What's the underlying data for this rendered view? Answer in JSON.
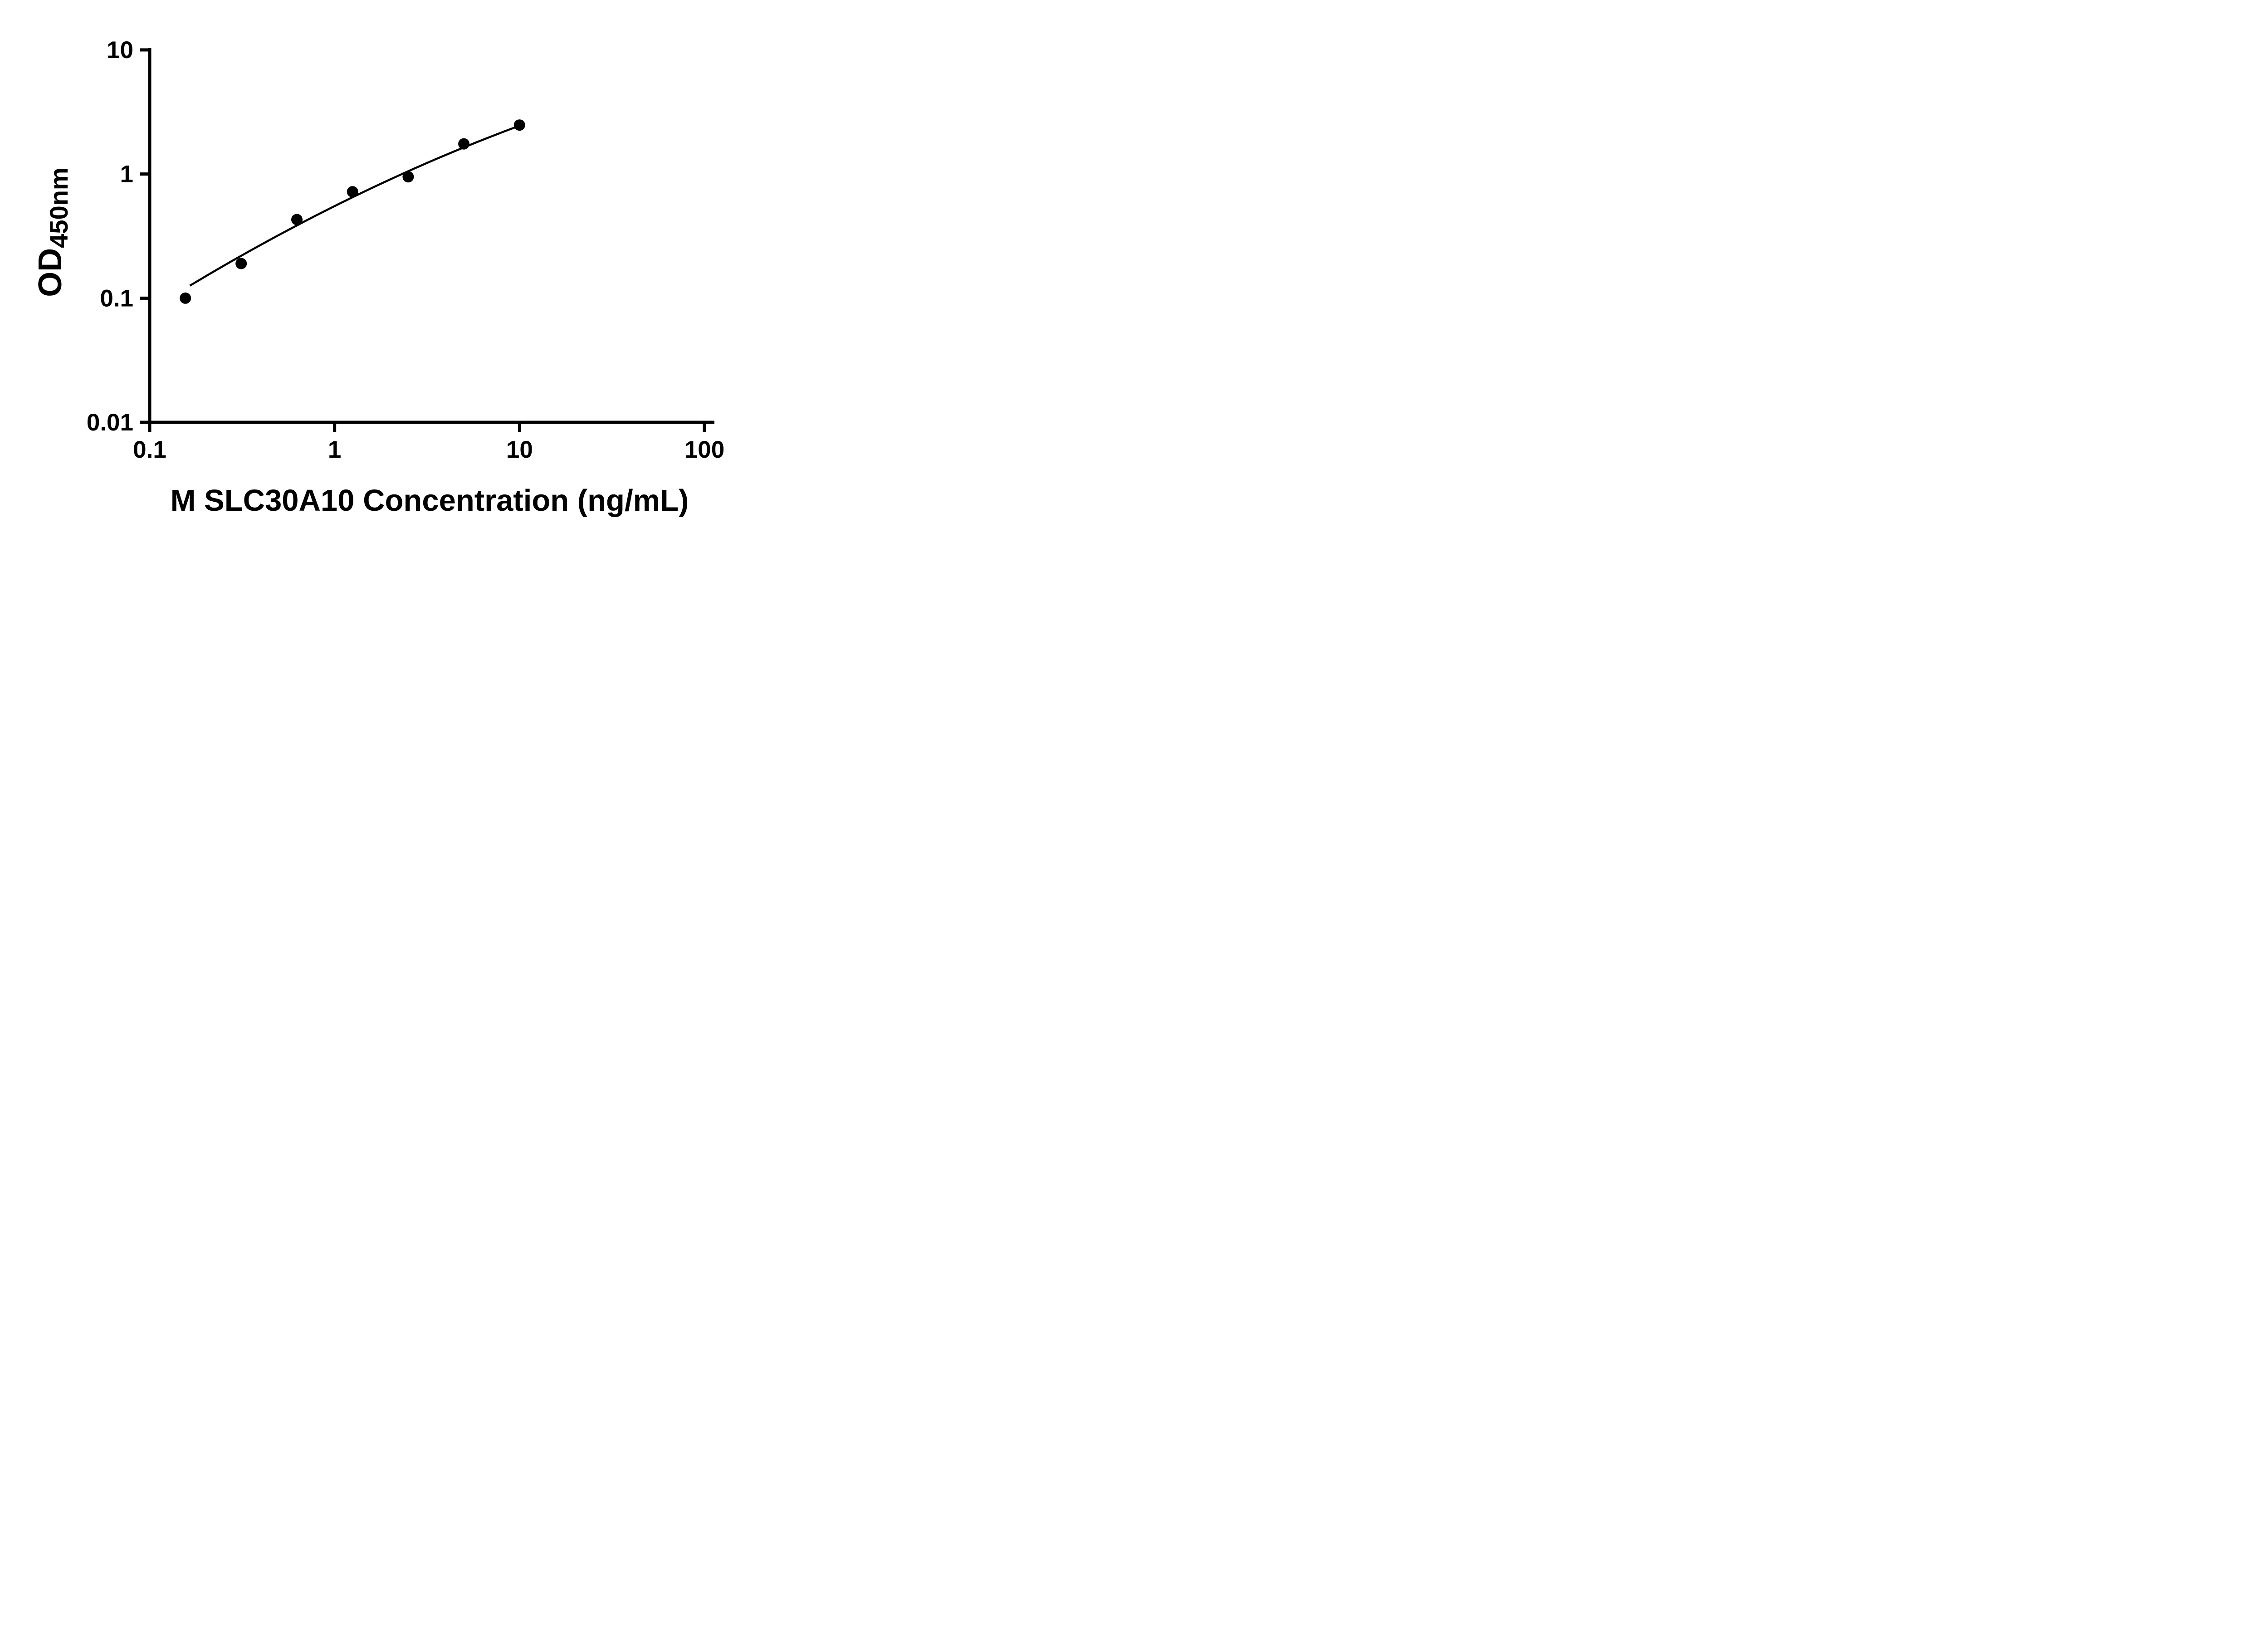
{
  "colors": {
    "foreground": "#000000",
    "background": "#ffffff"
  },
  "chart_data": {
    "type": "scatter",
    "title": "",
    "xlabel": "M SLC30A10 Concentration (ng/mL)",
    "ylabel_main": "OD",
    "ylabel_sub": "450nm",
    "x_scale": "log10",
    "y_scale": "log10",
    "xlim": [
      0.1,
      100
    ],
    "ylim": [
      0.01,
      10
    ],
    "x_tick_labels": [
      "0.1",
      "1",
      "10",
      "100"
    ],
    "y_tick_labels": [
      "10",
      "1",
      "0.1",
      "0.01"
    ],
    "grid": false,
    "legend": "none",
    "series": [
      {
        "marker": "circle",
        "marker_color": "#000000",
        "x": [
          0.156,
          0.3125,
          0.625,
          1.25,
          2.5,
          5,
          10
        ],
        "y": [
          0.1,
          0.19,
          0.43,
          0.72,
          0.95,
          1.75,
          2.48
        ]
      }
    ],
    "fit_curve": {
      "model": "log10(y) = a + b*u + c*u^2 where u = log10(x)",
      "a": -0.2582,
      "b": 0.7436,
      "c": -0.0963,
      "x_range": [
        0.165,
        10
      ]
    }
  }
}
